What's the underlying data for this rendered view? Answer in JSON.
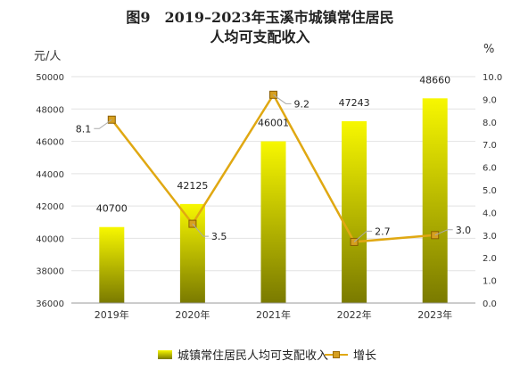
{
  "chart_data": {
    "type": "bar",
    "title": "图9　2019–2023年玉溪市城镇常住居民",
    "subtitle": "人均可支配收入",
    "categories": [
      "2019年",
      "2020年",
      "2021年",
      "2022年",
      "2023年"
    ],
    "series": [
      {
        "name": "城镇常住居民人均可支配收入",
        "type": "bar",
        "axis": "left",
        "values": [
          40700,
          42125,
          46001,
          47243,
          48660
        ]
      },
      {
        "name": "增长",
        "type": "line",
        "axis": "right",
        "values": [
          8.1,
          3.5,
          9.2,
          2.7,
          3.0
        ]
      }
    ],
    "ylabel": "元/人",
    "ylabel_right": "%",
    "ylim": [
      36000,
      50000
    ],
    "y2lim": [
      0,
      10
    ],
    "yticks": [
      36000,
      38000,
      40000,
      42000,
      44000,
      46000,
      48000,
      50000
    ],
    "y2ticks": [
      "0.0",
      "1.0",
      "2.0",
      "3.0",
      "4.0",
      "5.0",
      "6.0",
      "7.0",
      "8.0",
      "9.0",
      "10.0"
    ],
    "grid": true,
    "legend_position": "bottom",
    "colors": {
      "bar_top": "#f7f700",
      "bar_bottom": "#7a7a00",
      "line": "#e0a812",
      "marker": "#d6a020"
    }
  }
}
